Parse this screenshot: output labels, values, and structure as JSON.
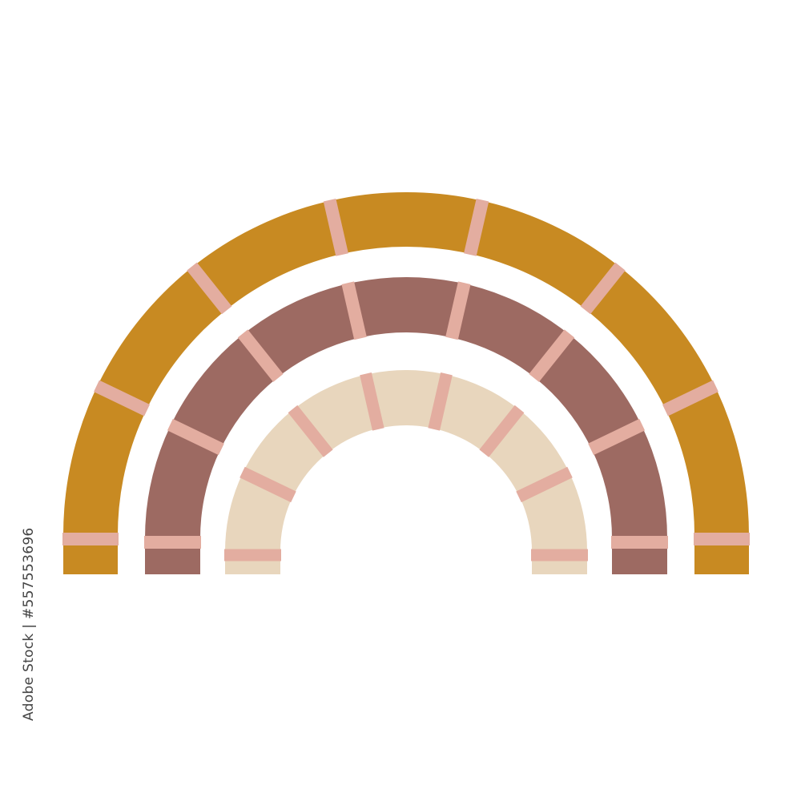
{
  "illustration": {
    "subject": "rainbow",
    "background_color": "#ffffff",
    "divider_color": "#e3ada0",
    "divider_count_per_band": 8,
    "bands": [
      {
        "name": "outer",
        "color": "#c88a22"
      },
      {
        "name": "middle",
        "color": "#9d6a62"
      },
      {
        "name": "inner",
        "color": "#e8d6bd"
      }
    ]
  },
  "watermark": {
    "text": "Adobe Stock",
    "side_credit": "Adobe Stock | #557553696"
  }
}
